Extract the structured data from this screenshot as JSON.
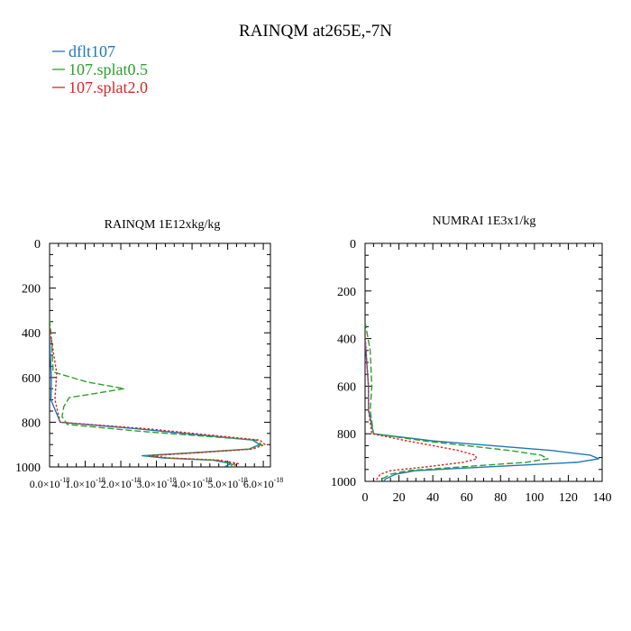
{
  "figure": {
    "title": "RAINQM at265E,-7N",
    "legend": [
      {
        "label": "dflt107",
        "color": "#1f77b4"
      },
      {
        "label": "107.splat0.5",
        "color": "#2ca02c"
      },
      {
        "label": "107.splat2.0",
        "color": "#d62728"
      }
    ]
  },
  "chart_data": [
    {
      "type": "line",
      "title": "RAINQM  1E12xkg/kg",
      "xlabel": "",
      "ylabel": "",
      "xlim": [
        0,
        6.2e-18
      ],
      "ylim": [
        1000,
        0
      ],
      "y_inverted": true,
      "x_ticks": [
        0,
        1e-18,
        2e-18,
        3e-18,
        4e-18,
        5e-18,
        6e-18
      ],
      "x_tick_labels": [
        "0.0×10",
        "1.0×10",
        "2.0×10",
        "3.0×10",
        "4.0×10",
        "5.0×10",
        "6.0×10"
      ],
      "x_tick_exponent": "-18",
      "y_ticks": [
        0,
        200,
        400,
        600,
        800,
        1000
      ],
      "y_tick_labels": [
        "0",
        "200",
        "400",
        "600",
        "800",
        "1000"
      ],
      "series": [
        {
          "name": "dflt107",
          "color": "#1f77b4",
          "dash": "solid",
          "x": [
            0,
            2e-20,
            5e-20,
            4e-20,
            3e-19,
            2.5e-18,
            5.7e-18,
            5.9e-18,
            5.6e-18,
            4.2e-18,
            2.6e-18,
            3.2e-18,
            4.6e-18,
            5.1e-18,
            4.9e-18
          ],
          "y": [
            400,
            500,
            600,
            700,
            800,
            830,
            880,
            900,
            920,
            935,
            950,
            960,
            970,
            985,
            1000
          ]
        },
        {
          "name": "107.splat0.5",
          "color": "#2ca02c",
          "dash": "dashed",
          "x": [
            0,
            5e-20,
            1e-19,
            1.05e-18,
            2.1e-18,
            5.5e-19,
            4e-19,
            3.5e-19,
            5e-19,
            2.5e-18,
            5.8e-18,
            5.95e-18,
            5.6e-18,
            4.2e-18,
            2.7e-18,
            3.3e-18,
            4.7e-18,
            5.2e-18,
            5e-18
          ],
          "y": [
            340,
            420,
            575,
            620,
            650,
            690,
            730,
            775,
            810,
            840,
            880,
            900,
            920,
            935,
            950,
            960,
            970,
            985,
            1000
          ]
        },
        {
          "name": "107.splat2.0",
          "color": "#d62728",
          "dash": "dotted",
          "x": [
            0,
            1e-19,
            2e-19,
            1.5e-19,
            3e-19,
            2.8e-18,
            5.9e-18,
            6.05e-18,
            5.7e-18,
            4.3e-18,
            2.8e-18,
            3.4e-18,
            4.8e-18,
            5.3e-18,
            5.1e-18
          ],
          "y": [
            380,
            480,
            580,
            700,
            800,
            830,
            880,
            900,
            920,
            935,
            950,
            960,
            970,
            985,
            1000
          ]
        }
      ]
    },
    {
      "type": "line",
      "title": "NUMRAI  1E3x1/kg",
      "xlabel": "",
      "ylabel": "",
      "xlim": [
        0,
        140
      ],
      "ylim": [
        1000,
        0
      ],
      "y_inverted": true,
      "x_ticks": [
        0,
        20,
        40,
        60,
        80,
        100,
        120,
        140
      ],
      "x_tick_labels": [
        "0",
        "20",
        "40",
        "60",
        "80",
        "100",
        "120",
        "140"
      ],
      "y_ticks": [
        0,
        200,
        400,
        600,
        800,
        1000
      ],
      "y_tick_labels": [
        "0",
        "200",
        "400",
        "600",
        "800",
        "1000"
      ],
      "series": [
        {
          "name": "dflt107",
          "color": "#1f77b4",
          "dash": "solid",
          "x": [
            0,
            1,
            2,
            2,
            5,
            40,
            110,
            133,
            138,
            125,
            70,
            30,
            18,
            12,
            11
          ],
          "y": [
            400,
            500,
            600,
            700,
            800,
            830,
            870,
            890,
            905,
            920,
            940,
            955,
            970,
            990,
            1000
          ]
        },
        {
          "name": "107.splat0.5",
          "color": "#2ca02c",
          "dash": "dashed",
          "x": [
            0,
            3,
            4,
            3,
            5,
            35,
            85,
            104,
            108,
            95,
            55,
            25,
            15,
            10,
            9
          ],
          "y": [
            330,
            450,
            600,
            700,
            800,
            830,
            870,
            890,
            905,
            920,
            940,
            955,
            970,
            990,
            1000
          ]
        },
        {
          "name": "107.splat2.0",
          "color": "#d62728",
          "dash": "dotted",
          "x": [
            0,
            1,
            2,
            2,
            4,
            25,
            55,
            65,
            66,
            58,
            35,
            15,
            9,
            7,
            6
          ],
          "y": [
            380,
            500,
            600,
            700,
            800,
            830,
            870,
            890,
            905,
            920,
            940,
            955,
            970,
            990,
            1000
          ]
        }
      ]
    }
  ]
}
